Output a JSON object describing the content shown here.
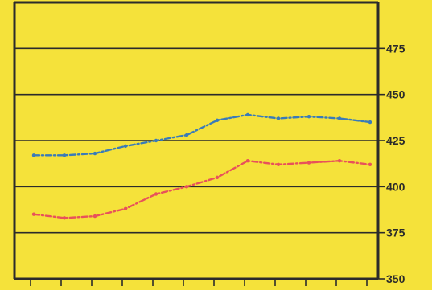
{
  "colors": {
    "background": "#f5e23a",
    "axis": "#2b2b2b",
    "blue_series": "#3a7bb8",
    "red_series": "#e8525a"
  },
  "chart_data": {
    "type": "line",
    "x": [
      1,
      2,
      3,
      4,
      5,
      6,
      7,
      8,
      9,
      10,
      11,
      12
    ],
    "ylim": [
      350,
      500
    ],
    "y_ticks": [
      350,
      375,
      400,
      425,
      450,
      475
    ],
    "y_tick_labels": [
      "350",
      "375",
      "400",
      "425",
      "450",
      "475"
    ],
    "xlabel": "",
    "ylabel": "",
    "title": "",
    "grid": "horizontal",
    "series": [
      {
        "color": "#3a7bb8",
        "values": [
          417,
          417,
          418,
          422,
          425,
          428,
          436,
          439,
          437,
          438,
          437,
          435
        ]
      },
      {
        "color": "#e8525a",
        "values": [
          385,
          383,
          384,
          388,
          396,
          400,
          405,
          414,
          412,
          413,
          414,
          412
        ]
      }
    ]
  }
}
